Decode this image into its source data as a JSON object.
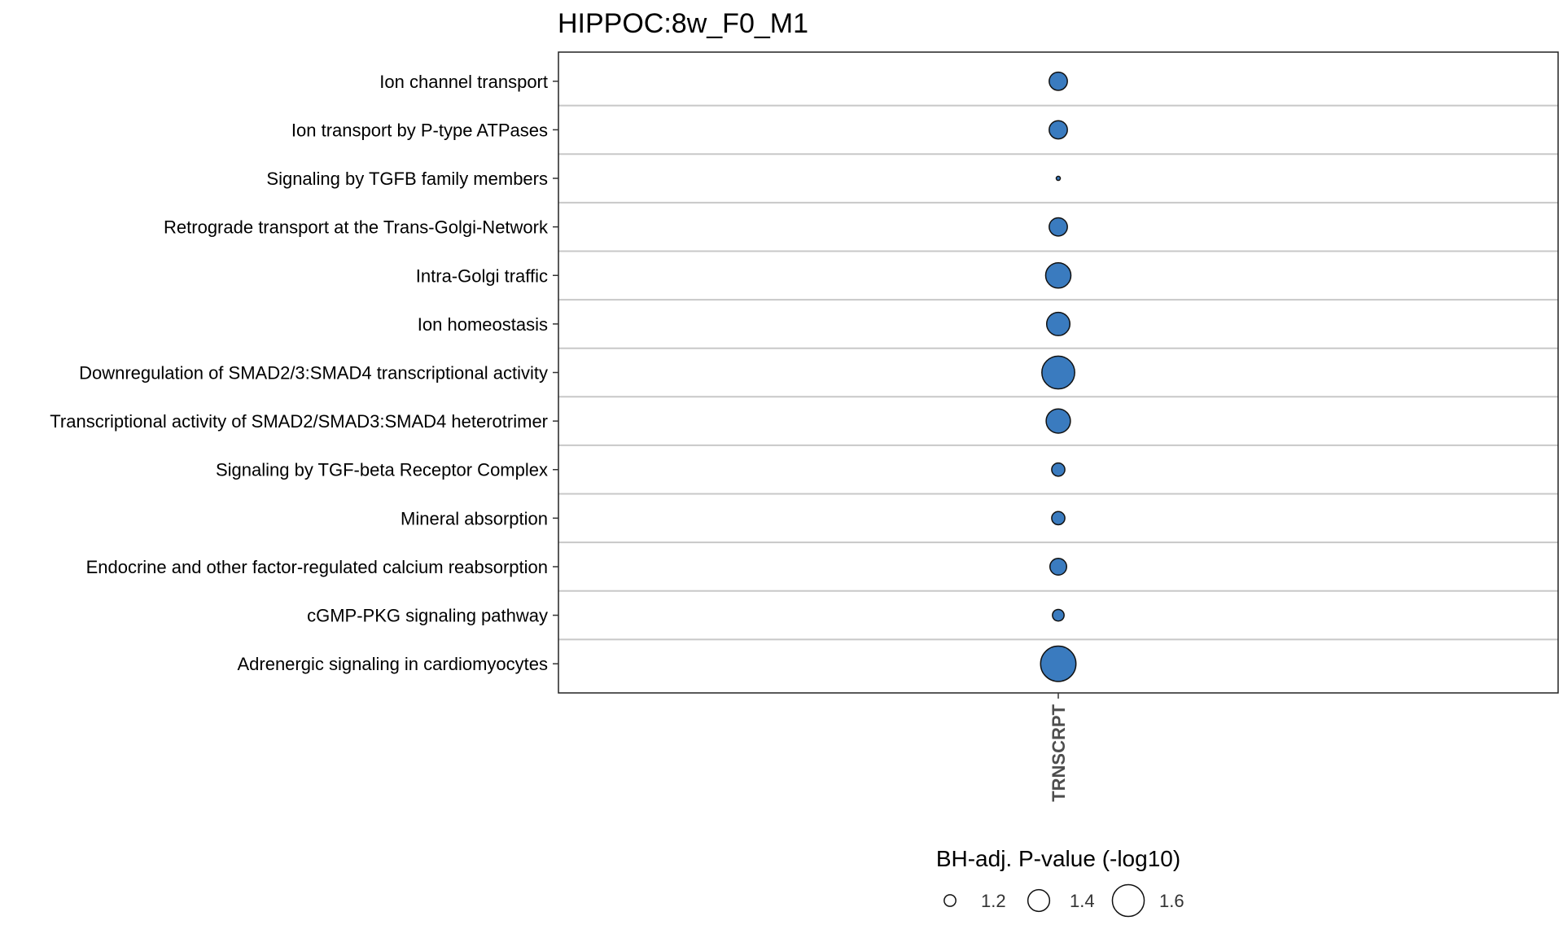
{
  "chart_data": {
    "type": "scatter",
    "title": "HIPPOC:8w_F0_M1",
    "x_categories": [
      "TRNSCRPT"
    ],
    "y_categories": [
      "Ion channel transport",
      "Ion transport by P-type ATPases",
      "Signaling by TGFB family members",
      "Retrograde transport at the Trans-Golgi-Network",
      "Intra-Golgi traffic",
      "Ion homeostasis",
      "Downregulation of SMAD2/3:SMAD4 transcriptional activity",
      "Transcriptional activity of SMAD2/SMAD3:SMAD4 heterotrimer",
      "Signaling by TGF-beta Receptor Complex",
      "Mineral absorption",
      "Endocrine and other factor-regulated calcium reabsorption",
      "cGMP-PKG signaling pathway",
      "Adrenergic signaling in cardiomyocytes"
    ],
    "points": [
      {
        "x": "TRNSCRPT",
        "y": "Ion channel transport",
        "neg_log10_padj": 1.33
      },
      {
        "x": "TRNSCRPT",
        "y": "Ion transport by P-type ATPases",
        "neg_log10_padj": 1.33
      },
      {
        "x": "TRNSCRPT",
        "y": "Signaling by TGFB family members",
        "neg_log10_padj": 1.05
      },
      {
        "x": "TRNSCRPT",
        "y": "Retrograde transport at the Trans-Golgi-Network",
        "neg_log10_padj": 1.33
      },
      {
        "x": "TRNSCRPT",
        "y": "Intra-Golgi traffic",
        "neg_log10_padj": 1.47
      },
      {
        "x": "TRNSCRPT",
        "y": "Ion homeostasis",
        "neg_log10_padj": 1.43
      },
      {
        "x": "TRNSCRPT",
        "y": "Downregulation of SMAD2/3:SMAD4 transcriptional activity",
        "neg_log10_padj": 1.62
      },
      {
        "x": "TRNSCRPT",
        "y": "Transcriptional activity of SMAD2/SMAD3:SMAD4 heterotrimer",
        "neg_log10_padj": 1.45
      },
      {
        "x": "TRNSCRPT",
        "y": "Signaling by TGF-beta Receptor Complex",
        "neg_log10_padj": 1.23
      },
      {
        "x": "TRNSCRPT",
        "y": "Mineral absorption",
        "neg_log10_padj": 1.23
      },
      {
        "x": "TRNSCRPT",
        "y": "Endocrine and other factor-regulated calcium reabsorption",
        "neg_log10_padj": 1.3
      },
      {
        "x": "TRNSCRPT",
        "y": "cGMP-PKG signaling pathway",
        "neg_log10_padj": 1.2
      },
      {
        "x": "TRNSCRPT",
        "y": "Adrenergic signaling in cardiomyocytes",
        "neg_log10_padj": 1.67
      }
    ],
    "point_color": "#3a7bbf",
    "size_legend": {
      "title": "BH-adj. P-value (-log10)",
      "breaks": [
        1.2,
        1.4,
        1.6
      ],
      "labels": [
        "1.2",
        "1.4",
        "1.6"
      ]
    },
    "grid": true,
    "legend_position": "bottom"
  }
}
